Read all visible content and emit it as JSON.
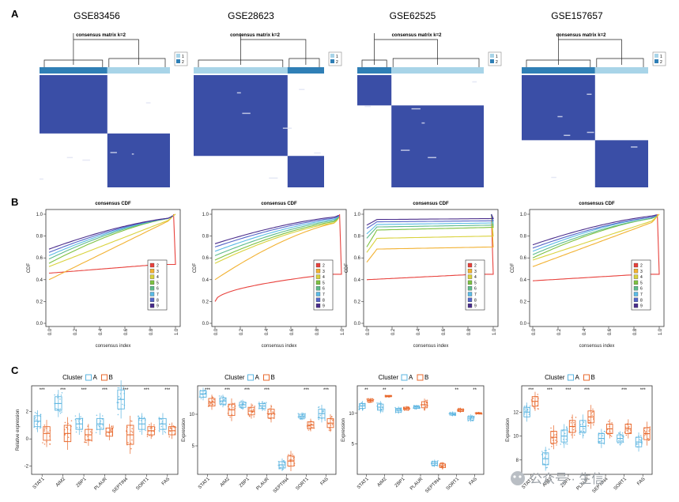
{
  "panels": {
    "a": "A",
    "b": "B",
    "c": "C"
  },
  "datasets": [
    "GSE83456",
    "GSE28623",
    "GSE62525",
    "GSE157657"
  ],
  "consensus": {
    "title": "consensus matrix k=2",
    "legend": [
      "1",
      "2"
    ],
    "colors": {
      "cluster1": "#a8d4e8",
      "cluster2": "#2f7fb6",
      "fill": "#3a4ea6",
      "light": "#dfe2f2"
    },
    "matrices": [
      {
        "order": [
          2,
          1
        ],
        "fractions": [
          0.52,
          0.48
        ]
      },
      {
        "order": [
          1,
          2
        ],
        "fractions": [
          0.72,
          0.28
        ]
      },
      {
        "order": [
          2,
          1
        ],
        "fractions": [
          0.27,
          0.73
        ]
      },
      {
        "order": [
          2,
          1
        ],
        "fractions": [
          0.58,
          0.42
        ]
      }
    ]
  },
  "chart_data": [
    {
      "type": "line",
      "panel": "B",
      "title": "consensus CDF",
      "xlabel": "consensus index",
      "ylabel": "CDF",
      "xlim": [
        0,
        1
      ],
      "ylim": [
        0,
        1
      ],
      "xticks": [
        "0.0",
        "0.2",
        "0.4",
        "0.6",
        "0.8",
        "1.0"
      ],
      "yticks": [
        "0.0",
        "0.2",
        "0.4",
        "0.6",
        "0.8",
        "1.0"
      ],
      "legend": [
        "2",
        "3",
        "4",
        "5",
        "6",
        "7",
        "8",
        "9"
      ],
      "series_colors": [
        "#e8413c",
        "#f2b233",
        "#d9d23c",
        "#7dc242",
        "#5dbb8c",
        "#5bbbe6",
        "#5566c8",
        "#4a2d8c",
        "#c83fae"
      ],
      "plots": [
        {
          "dataset": "GSE83456",
          "series": [
            {
              "name": "2",
              "start": 0.46,
              "plateau": 0.54,
              "shape": "flat"
            },
            {
              "name": "3",
              "start": 0.4,
              "plateau": 0.97,
              "shape": "linear"
            },
            {
              "name": "4",
              "start": 0.52,
              "plateau": 0.97,
              "shape": "linear"
            },
            {
              "name": "5",
              "start": 0.55,
              "plateau": 0.97,
              "shape": "convex"
            },
            {
              "name": "6",
              "start": 0.59,
              "plateau": 0.97,
              "shape": "convex"
            },
            {
              "name": "7",
              "start": 0.62,
              "plateau": 0.97,
              "shape": "convex"
            },
            {
              "name": "8",
              "start": 0.65,
              "plateau": 0.97,
              "shape": "convex"
            },
            {
              "name": "9",
              "start": 0.68,
              "plateau": 0.97,
              "shape": "convex"
            }
          ]
        },
        {
          "dataset": "GSE28623",
          "series": [
            {
              "name": "2",
              "start": 0.2,
              "plateau": 0.45,
              "shape": "rising"
            },
            {
              "name": "3",
              "start": 0.4,
              "plateau": 0.93,
              "shape": "convex"
            },
            {
              "name": "4",
              "start": 0.55,
              "plateau": 0.93,
              "shape": "convex"
            },
            {
              "name": "5",
              "start": 0.58,
              "plateau": 0.94,
              "shape": "convex"
            },
            {
              "name": "6",
              "start": 0.62,
              "plateau": 0.95,
              "shape": "convex"
            },
            {
              "name": "7",
              "start": 0.66,
              "plateau": 0.96,
              "shape": "convex"
            },
            {
              "name": "8",
              "start": 0.7,
              "plateau": 0.97,
              "shape": "convex"
            },
            {
              "name": "9",
              "start": 0.73,
              "plateau": 0.98,
              "shape": "convex"
            }
          ]
        },
        {
          "dataset": "GSE62525",
          "series": [
            {
              "name": "2",
              "start": 0.4,
              "plateau": 0.45,
              "shape": "flat"
            },
            {
              "name": "3",
              "start": 0.56,
              "plateau": 0.7,
              "shape": "step"
            },
            {
              "name": "4",
              "start": 0.65,
              "plateau": 0.8,
              "shape": "step"
            },
            {
              "name": "5",
              "start": 0.7,
              "plateau": 0.88,
              "shape": "step"
            },
            {
              "name": "6",
              "start": 0.78,
              "plateau": 0.9,
              "shape": "step"
            },
            {
              "name": "7",
              "start": 0.82,
              "plateau": 0.92,
              "shape": "step"
            },
            {
              "name": "8",
              "start": 0.87,
              "plateau": 0.94,
              "shape": "step"
            },
            {
              "name": "9",
              "start": 0.9,
              "plateau": 0.96,
              "shape": "step"
            }
          ]
        },
        {
          "dataset": "GSE157657",
          "series": [
            {
              "name": "2",
              "start": 0.39,
              "plateau": 0.45,
              "shape": "flat"
            },
            {
              "name": "3",
              "start": 0.52,
              "plateau": 0.95,
              "shape": "linear"
            },
            {
              "name": "4",
              "start": 0.58,
              "plateau": 0.96,
              "shape": "linear"
            },
            {
              "name": "5",
              "start": 0.6,
              "plateau": 0.97,
              "shape": "convex"
            },
            {
              "name": "6",
              "start": 0.63,
              "plateau": 0.97,
              "shape": "convex"
            },
            {
              "name": "7",
              "start": 0.66,
              "plateau": 0.98,
              "shape": "convex"
            },
            {
              "name": "8",
              "start": 0.69,
              "plateau": 0.98,
              "shape": "convex"
            },
            {
              "name": "9",
              "start": 0.72,
              "plateau": 0.99,
              "shape": "convex"
            }
          ]
        }
      ]
    },
    {
      "type": "box",
      "panel": "C",
      "legend_title": "Cluster",
      "groups": [
        "A",
        "B"
      ],
      "group_colors": [
        "#5bb4e0",
        "#e8682c"
      ],
      "genes": [
        "STAT1",
        "AIM2",
        "ZBP1",
        "PLAUR",
        "SEPTIN4",
        "SORT1",
        "FAS"
      ],
      "plots": [
        {
          "dataset": "GSE83456",
          "ylabel": "Relative expression",
          "yticks": [
            -2,
            0,
            2
          ],
          "ylim": [
            -2.6,
            3.9
          ],
          "sig": [
            "***",
            "***",
            "***",
            "***",
            "***",
            "***",
            "***"
          ],
          "medians": {
            "A": [
              1.3,
              2.6,
              1.1,
              1.1,
              2.9,
              1.1,
              1.1
            ],
            "B": [
              0.4,
              0.4,
              0.3,
              0.5,
              0.3,
              0.6,
              0.6
            ]
          },
          "spread": {
            "A": [
              0.4,
              0.5,
              0.4,
              0.4,
              0.7,
              0.4,
              0.4
            ],
            "B": [
              0.5,
              0.6,
              0.4,
              0.3,
              0.7,
              0.3,
              0.3
            ]
          }
        },
        {
          "dataset": "GSE28623",
          "ylabel": "Expression",
          "yticks": [
            5,
            10
          ],
          "ylim": [
            0.5,
            14.5
          ],
          "sig": [
            "***",
            "***",
            "***",
            "***",
            "",
            "***",
            "***"
          ],
          "medians": {
            "A": [
              13.2,
              12.1,
              11.5,
              11.3,
              2.0,
              9.7,
              10.1
            ],
            "B": [
              11.9,
              10.7,
              10.5,
              10.1,
              2.6,
              8.3,
              8.6
            ]
          },
          "spread": {
            "A": [
              0.5,
              0.5,
              0.4,
              0.4,
              0.5,
              0.3,
              0.7
            ],
            "B": [
              0.6,
              0.9,
              0.6,
              0.7,
              0.8,
              0.5,
              0.7
            ]
          }
        },
        {
          "dataset": "GSE62525",
          "ylabel": "Expression",
          "yticks": [
            5,
            10
          ],
          "ylim": [
            0,
            14.5
          ],
          "sig": [
            "**",
            "**",
            "*",
            "",
            "",
            "**",
            "**"
          ],
          "medians": {
            "A": [
              11.2,
              11.0,
              10.5,
              11.0,
              1.8,
              9.9,
              9.2
            ],
            "B": [
              12.1,
              12.8,
              10.8,
              11.4,
              1.4,
              10.5,
              10.0
            ]
          },
          "spread": {
            "A": [
              0.4,
              0.5,
              0.3,
              0.2,
              0.3,
              0.2,
              0.3
            ],
            "B": [
              0.2,
              0.1,
              0.2,
              0.5,
              0.3,
              0.2,
              0.1
            ]
          }
        },
        {
          "dataset": "GSE157657",
          "ylabel": "Expression",
          "yticks": [
            8,
            10,
            12
          ],
          "ylim": [
            6.8,
            14.2
          ],
          "sig": [
            "***",
            "***",
            "***",
            "***",
            "",
            "***",
            "***"
          ],
          "medians": {
            "A": [
              12.0,
              8.1,
              10.0,
              10.8,
              9.8,
              9.8,
              9.5
            ],
            "B": [
              12.9,
              9.9,
              10.8,
              11.6,
              10.6,
              10.6,
              10.2
            ]
          },
          "spread": {
            "A": [
              0.4,
              0.5,
              0.5,
              0.5,
              0.4,
              0.3,
              0.4
            ],
            "B": [
              0.4,
              0.5,
              0.5,
              0.5,
              0.4,
              0.4,
              0.5
            ]
          }
        }
      ]
    }
  ],
  "watermark": {
    "text": "公众号 · 生信"
  }
}
